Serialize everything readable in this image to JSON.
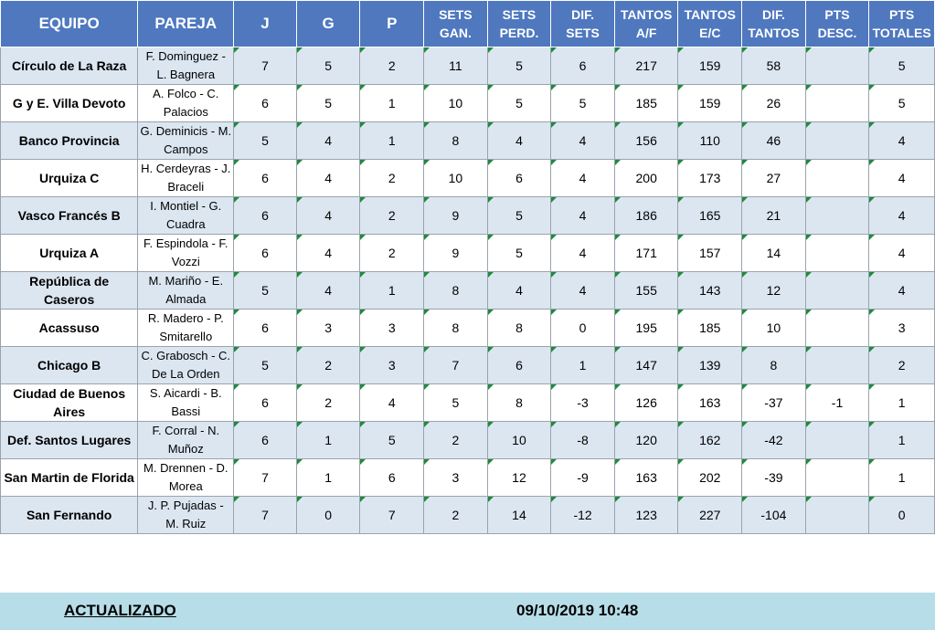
{
  "headers": {
    "equipo": "EQUIPO",
    "pareja": "PAREJA",
    "j": "J",
    "g": "G",
    "p": "P",
    "sets_gan": [
      "SETS",
      "GAN."
    ],
    "sets_perd": [
      "SETS",
      "PERD."
    ],
    "dif_sets": "DIF. SETS",
    "tantos_af": [
      "TANTOS",
      "A/F"
    ],
    "tantos_ec": [
      "TANTOS",
      "E/C"
    ],
    "dif_tantos": [
      "DIF.",
      "TANTOS"
    ],
    "pts_desc": [
      "PTS",
      "DESC."
    ],
    "pts_totales": [
      "PTS",
      "TOTALES"
    ]
  },
  "rows": [
    {
      "equipo": "Círculo de La Raza",
      "pareja": "F. Dominguez - L. Bagnera",
      "j": "7",
      "g": "5",
      "p": "2",
      "sets_gan": "11",
      "sets_perd": "5",
      "dif_sets": "6",
      "tantos_af": "217",
      "tantos_ec": "159",
      "dif_tantos": "58",
      "pts_desc": "",
      "pts_totales": "5"
    },
    {
      "equipo": "G y E. Villa Devoto",
      "pareja": "A. Folco - C. Palacios",
      "j": "6",
      "g": "5",
      "p": "1",
      "sets_gan": "10",
      "sets_perd": "5",
      "dif_sets": "5",
      "tantos_af": "185",
      "tantos_ec": "159",
      "dif_tantos": "26",
      "pts_desc": "",
      "pts_totales": "5"
    },
    {
      "equipo": "Banco Provincia",
      "pareja": "G. Deminicis - M. Campos",
      "j": "5",
      "g": "4",
      "p": "1",
      "sets_gan": "8",
      "sets_perd": "4",
      "dif_sets": "4",
      "tantos_af": "156",
      "tantos_ec": "110",
      "dif_tantos": "46",
      "pts_desc": "",
      "pts_totales": "4"
    },
    {
      "equipo": "Urquiza C",
      "pareja": "H. Cerdeyras - J. Braceli",
      "j": "6",
      "g": "4",
      "p": "2",
      "sets_gan": "10",
      "sets_perd": "6",
      "dif_sets": "4",
      "tantos_af": "200",
      "tantos_ec": "173",
      "dif_tantos": "27",
      "pts_desc": "",
      "pts_totales": "4"
    },
    {
      "equipo": "Vasco Francés B",
      "pareja": "I. Montiel - G. Cuadra",
      "j": "6",
      "g": "4",
      "p": "2",
      "sets_gan": "9",
      "sets_perd": "5",
      "dif_sets": "4",
      "tantos_af": "186",
      "tantos_ec": "165",
      "dif_tantos": "21",
      "pts_desc": "",
      "pts_totales": "4"
    },
    {
      "equipo": "Urquiza A",
      "pareja": "F. Espindola - F. Vozzi",
      "j": "6",
      "g": "4",
      "p": "2",
      "sets_gan": "9",
      "sets_perd": "5",
      "dif_sets": "4",
      "tantos_af": "171",
      "tantos_ec": "157",
      "dif_tantos": "14",
      "pts_desc": "",
      "pts_totales": "4"
    },
    {
      "equipo": "República de Caseros",
      "pareja": "M. Mariño - E. Almada",
      "j": "5",
      "g": "4",
      "p": "1",
      "sets_gan": "8",
      "sets_perd": "4",
      "dif_sets": "4",
      "tantos_af": "155",
      "tantos_ec": "143",
      "dif_tantos": "12",
      "pts_desc": "",
      "pts_totales": "4"
    },
    {
      "equipo": "Acassuso",
      "pareja": "R. Madero - P. Smitarello",
      "j": "6",
      "g": "3",
      "p": "3",
      "sets_gan": "8",
      "sets_perd": "8",
      "dif_sets": "0",
      "tantos_af": "195",
      "tantos_ec": "185",
      "dif_tantos": "10",
      "pts_desc": "",
      "pts_totales": "3"
    },
    {
      "equipo": "Chicago B",
      "pareja": "C. Grabosch - C. De La Orden",
      "j": "5",
      "g": "2",
      "p": "3",
      "sets_gan": "7",
      "sets_perd": "6",
      "dif_sets": "1",
      "tantos_af": "147",
      "tantos_ec": "139",
      "dif_tantos": "8",
      "pts_desc": "",
      "pts_totales": "2"
    },
    {
      "equipo": "Ciudad de Buenos Aires",
      "pareja": "S. Aicardi - B. Bassi",
      "j": "6",
      "g": "2",
      "p": "4",
      "sets_gan": "5",
      "sets_perd": "8",
      "dif_sets": "-3",
      "tantos_af": "126",
      "tantos_ec": "163",
      "dif_tantos": "-37",
      "pts_desc": "-1",
      "pts_totales": "1"
    },
    {
      "equipo": "Def. Santos Lugares",
      "pareja": "F. Corral - N. Muñoz",
      "j": "6",
      "g": "1",
      "p": "5",
      "sets_gan": "2",
      "sets_perd": "10",
      "dif_sets": "-8",
      "tantos_af": "120",
      "tantos_ec": "162",
      "dif_tantos": "-42",
      "pts_desc": "",
      "pts_totales": "1"
    },
    {
      "equipo": "San Martin de Florida",
      "pareja": "M. Drennen - D. Morea",
      "j": "7",
      "g": "1",
      "p": "6",
      "sets_gan": "3",
      "sets_perd": "12",
      "dif_sets": "-9",
      "tantos_af": "163",
      "tantos_ec": "202",
      "dif_tantos": "-39",
      "pts_desc": "",
      "pts_totales": "1"
    },
    {
      "equipo": "San Fernando",
      "pareja": "J. P. Pujadas - M. Ruiz",
      "j": "7",
      "g": "0",
      "p": "7",
      "sets_gan": "2",
      "sets_perd": "14",
      "dif_sets": "-12",
      "tantos_af": "123",
      "tantos_ec": "227",
      "dif_tantos": "-104",
      "pts_desc": "",
      "pts_totales": "0"
    }
  ],
  "footer": {
    "label": "ACTUALIZADO",
    "date": "09/10/2019 10:48"
  },
  "colors": {
    "header_bg": "#4f78bf",
    "row_alt_bg": "#dce6f1",
    "footer_bg": "#b7dde8"
  }
}
